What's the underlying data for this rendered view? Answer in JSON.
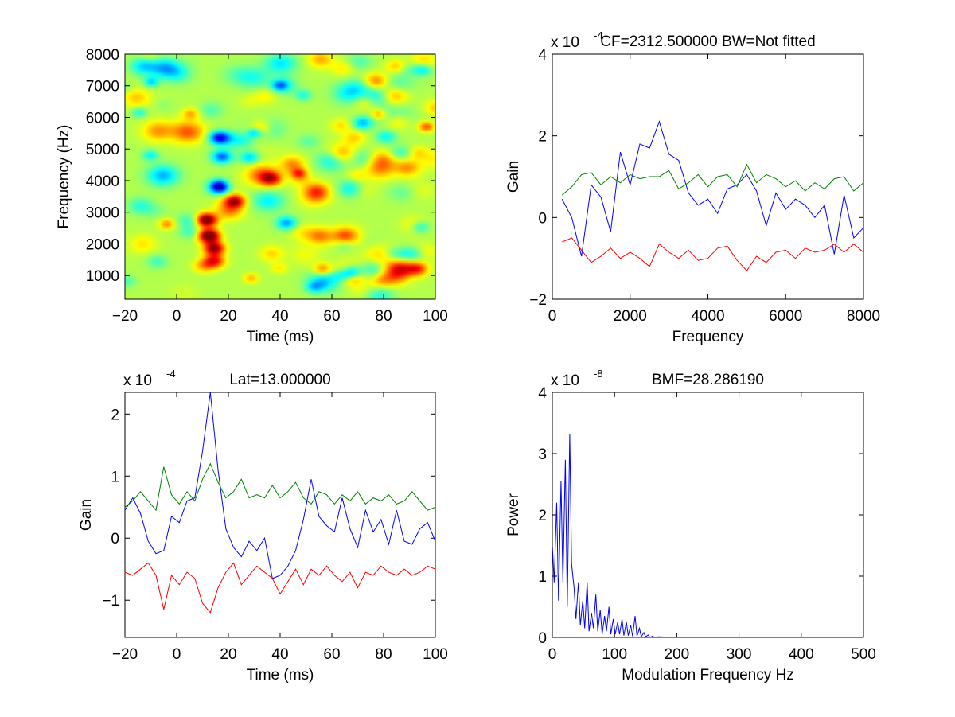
{
  "chart_data": [
    {
      "type": "heatmap",
      "title": "",
      "xlabel": "Time (ms)",
      "ylabel": "Frequency (Hz)",
      "xlim": [
        -20,
        100
      ],
      "ylim": [
        250,
        8000
      ],
      "xticks": [
        -20,
        0,
        20,
        40,
        60,
        80,
        100
      ],
      "yticks": [
        1000,
        2000,
        3000,
        4000,
        5000,
        6000,
        7000,
        8000
      ],
      "colormap": "jet",
      "background_color": "#9bf07a",
      "features": [
        {
          "x": 12,
          "y": 2300,
          "level": 1.0
        },
        {
          "x": 11,
          "y": 2800,
          "level": 0.95
        },
        {
          "x": 14,
          "y": 1900,
          "level": 0.8
        },
        {
          "x": 22,
          "y": 3400,
          "level": 0.7
        },
        {
          "x": 14,
          "y": 1500,
          "level": 0.6
        },
        {
          "x": 36,
          "y": 4100,
          "level": 0.55
        },
        {
          "x": 16,
          "y": 3850,
          "level": -1.0
        },
        {
          "x": 16,
          "y": 5400,
          "level": -0.8
        },
        {
          "x": 17,
          "y": 4800,
          "level": -0.6
        },
        {
          "x": 42,
          "y": 2700,
          "level": -0.5
        }
      ]
    },
    {
      "type": "line",
      "title": "CF=2312.500000 BW=Not fitted",
      "xlabel": "Frequency",
      "ylabel": "Gain",
      "xlim": [
        0,
        8000
      ],
      "ylim": [
        -2,
        4
      ],
      "xticks": [
        0,
        2000,
        4000,
        6000,
        8000
      ],
      "yticks": [
        -2,
        0,
        2,
        4
      ],
      "exponent_label": "x 10",
      "exponent": "-4",
      "x": [
        250,
        500,
        750,
        1000,
        1250,
        1500,
        1750,
        2000,
        2250,
        2500,
        2750,
        3000,
        3250,
        3500,
        3750,
        4000,
        4250,
        4500,
        4750,
        5000,
        5250,
        5500,
        5750,
        6000,
        6250,
        6500,
        6750,
        7000,
        7250,
        7500,
        7750,
        8000
      ],
      "series": [
        {
          "color": "#0000ff",
          "values": [
            0.45,
            0.0,
            -0.95,
            0.8,
            0.5,
            -0.35,
            1.6,
            0.8,
            1.8,
            1.7,
            2.35,
            1.55,
            1.4,
            0.6,
            0.3,
            0.45,
            0.1,
            0.7,
            0.8,
            1.05,
            0.65,
            -0.2,
            0.6,
            0.2,
            0.45,
            0.3,
            0.0,
            0.3,
            -0.9,
            0.55,
            -0.5,
            -0.25
          ]
        },
        {
          "color": "#008000",
          "values": [
            0.55,
            0.75,
            1.05,
            1.1,
            0.8,
            1.0,
            0.85,
            1.05,
            0.95,
            1.0,
            1.0,
            1.15,
            0.7,
            0.85,
            1.05,
            0.75,
            1.0,
            1.05,
            0.75,
            1.3,
            0.85,
            1.05,
            0.95,
            0.75,
            0.9,
            0.65,
            0.85,
            0.7,
            0.95,
            1.0,
            0.65,
            0.85
          ]
        },
        {
          "color": "#ff0000",
          "values": [
            -0.6,
            -0.5,
            -0.8,
            -1.1,
            -0.95,
            -0.75,
            -1.0,
            -0.85,
            -1.0,
            -1.2,
            -0.65,
            -0.85,
            -1.0,
            -0.8,
            -1.05,
            -1.0,
            -0.75,
            -0.7,
            -1.05,
            -1.3,
            -0.95,
            -1.1,
            -0.85,
            -0.8,
            -1.0,
            -0.75,
            -0.85,
            -0.8,
            -0.65,
            -0.85,
            -0.65,
            -0.85
          ]
        }
      ]
    },
    {
      "type": "line",
      "title": "Lat=13.000000",
      "xlabel": "Time (ms)",
      "ylabel": "Gain",
      "xlim": [
        -20,
        100
      ],
      "ylim": [
        -1.6,
        2.35
      ],
      "xticks": [
        -20,
        0,
        20,
        40,
        60,
        80,
        100
      ],
      "yticks": [
        -1,
        0,
        1,
        2
      ],
      "exponent_label": "x 10",
      "exponent": "-4",
      "x": [
        -20,
        -17,
        -14,
        -11,
        -8,
        -5,
        -2,
        1,
        4,
        7,
        10,
        13,
        16,
        19,
        22,
        25,
        28,
        31,
        34,
        37,
        40,
        43,
        46,
        49,
        52,
        55,
        58,
        61,
        64,
        67,
        70,
        73,
        76,
        79,
        82,
        85,
        88,
        91,
        94,
        97,
        100
      ],
      "series": [
        {
          "color": "#0000ff",
          "values": [
            0.45,
            0.65,
            0.4,
            -0.05,
            -0.25,
            -0.2,
            0.35,
            0.25,
            0.6,
            0.65,
            1.4,
            2.35,
            1.1,
            0.15,
            -0.15,
            -0.3,
            -0.05,
            -0.2,
            0.0,
            -0.65,
            -0.6,
            -0.45,
            -0.2,
            0.3,
            0.95,
            0.35,
            0.2,
            0.1,
            0.65,
            0.15,
            -0.15,
            0.45,
            0.1,
            0.3,
            -0.1,
            0.45,
            -0.05,
            -0.1,
            0.15,
            0.25,
            -0.05
          ]
        },
        {
          "color": "#008000",
          "values": [
            0.5,
            0.6,
            0.75,
            0.6,
            0.45,
            1.15,
            0.7,
            0.55,
            0.75,
            0.6,
            0.95,
            1.2,
            0.9,
            0.65,
            0.75,
            0.95,
            0.65,
            0.7,
            0.65,
            0.85,
            0.65,
            0.75,
            0.9,
            0.65,
            0.55,
            0.75,
            0.7,
            0.55,
            0.7,
            0.6,
            0.75,
            0.55,
            0.65,
            0.6,
            0.7,
            0.55,
            0.6,
            0.75,
            0.6,
            0.45,
            0.5
          ]
        },
        {
          "color": "#ff0000",
          "values": [
            -0.55,
            -0.6,
            -0.5,
            -0.4,
            -0.6,
            -1.15,
            -0.6,
            -0.75,
            -0.55,
            -0.65,
            -1.05,
            -1.2,
            -0.8,
            -0.55,
            -0.4,
            -0.75,
            -0.6,
            -0.45,
            -0.55,
            -0.65,
            -0.9,
            -0.7,
            -0.5,
            -0.75,
            -0.5,
            -0.6,
            -0.45,
            -0.6,
            -0.7,
            -0.55,
            -0.8,
            -0.55,
            -0.6,
            -0.45,
            -0.55,
            -0.6,
            -0.5,
            -0.6,
            -0.55,
            -0.45,
            -0.5
          ]
        }
      ]
    },
    {
      "type": "line",
      "title": "BMF=28.286190",
      "xlabel": "Modulation Frequency Hz",
      "ylabel": "Power",
      "xlim": [
        0,
        500
      ],
      "ylim": [
        0,
        4
      ],
      "xticks": [
        0,
        100,
        200,
        300,
        400,
        500
      ],
      "yticks": [
        0,
        1,
        2,
        3,
        4
      ],
      "exponent_label": "x 10",
      "exponent": "-8",
      "x": [
        0,
        3,
        7,
        10,
        14,
        17,
        21,
        24,
        28,
        31,
        35,
        38,
        42,
        45,
        49,
        52,
        56,
        59,
        63,
        66,
        70,
        73,
        77,
        80,
        84,
        87,
        91,
        94,
        98,
        101,
        105,
        108,
        112,
        115,
        119,
        122,
        126,
        129,
        133,
        136,
        140,
        143,
        147,
        150,
        154,
        157,
        161,
        165,
        170,
        200,
        250,
        300,
        350,
        400,
        450,
        470
      ],
      "series": [
        {
          "color": "#0000ff",
          "values": [
            1.5,
            0.9,
            2.2,
            0.6,
            2.55,
            0.9,
            2.9,
            0.5,
            3.32,
            1.2,
            0.8,
            0.3,
            0.9,
            0.2,
            0.6,
            0.15,
            0.9,
            0.1,
            0.4,
            0.15,
            0.7,
            0.1,
            0.45,
            0.05,
            0.35,
            0.1,
            0.5,
            0.05,
            0.3,
            0.05,
            0.25,
            0.05,
            0.3,
            0.03,
            0.25,
            0.03,
            0.2,
            0.02,
            0.35,
            0.02,
            0.15,
            0.01,
            0.08,
            0.01,
            0.04,
            0.0,
            0.02,
            0.0,
            0.01,
            0.0,
            0.0,
            0.0,
            0.0,
            0.0,
            0.0,
            0.0
          ]
        }
      ]
    }
  ]
}
